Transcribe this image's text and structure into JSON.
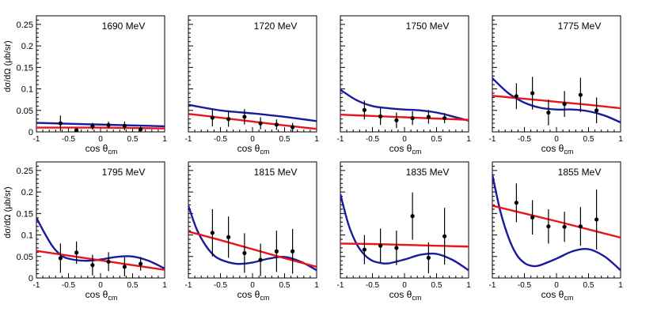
{
  "figure": {
    "ylabel": "dσ/dΩ (μb/sr)",
    "xlabel_main": "cos θ",
    "xlabel_sub": "cm",
    "colors": {
      "fit_blue": "#1a1a9e",
      "fit_red": "#e8141a",
      "points": "#000000"
    }
  },
  "chart_data": [
    {
      "type": "line",
      "title": "1690 MeV",
      "xlim": [
        -1,
        1
      ],
      "ylim": [
        0,
        0.27
      ],
      "xticks": [
        "-1",
        "-0.5",
        "0",
        "0.5",
        "1"
      ],
      "yticks": [
        "0",
        "0.05",
        "0.1",
        "0.15",
        "0.2",
        "0.25"
      ],
      "points": [
        {
          "x": -0.625,
          "y": 0.02,
          "err": 0.018
        },
        {
          "x": -0.375,
          "y": 0.004,
          "err": 0.004
        },
        {
          "x": -0.125,
          "y": 0.013,
          "err": 0.008
        },
        {
          "x": 0.125,
          "y": 0.016,
          "err": 0.008
        },
        {
          "x": 0.375,
          "y": 0.014,
          "err": 0.01
        },
        {
          "x": 0.625,
          "y": 0.006,
          "err": 0.006
        }
      ],
      "series": [
        {
          "name": "blue fit",
          "color": "#1a1a9e",
          "x": [
            -1,
            -0.5,
            0,
            0.5,
            1
          ],
          "y": [
            0.021,
            0.019,
            0.017,
            0.015,
            0.013
          ]
        },
        {
          "name": "red fit",
          "color": "#e8141a",
          "x": [
            -1,
            -0.5,
            0,
            0.5,
            1
          ],
          "y": [
            0.01,
            0.01,
            0.01,
            0.009,
            0.008
          ]
        }
      ]
    },
    {
      "type": "line",
      "title": "1720 MeV",
      "xlim": [
        -1,
        1
      ],
      "ylim": [
        0,
        0.27
      ],
      "xticks": [
        "-1",
        "-0.5",
        "0",
        "0.5",
        "1"
      ],
      "yticks": [],
      "points": [
        {
          "x": -0.625,
          "y": 0.033,
          "err": 0.02
        },
        {
          "x": -0.375,
          "y": 0.03,
          "err": 0.018
        },
        {
          "x": -0.125,
          "y": 0.035,
          "err": 0.018
        },
        {
          "x": 0.125,
          "y": 0.02,
          "err": 0.014
        },
        {
          "x": 0.375,
          "y": 0.017,
          "err": 0.012
        },
        {
          "x": 0.625,
          "y": 0.011,
          "err": 0.01
        }
      ],
      "series": [
        {
          "name": "blue fit",
          "color": "#1a1a9e",
          "x": [
            -1,
            -0.5,
            0,
            0.5,
            1
          ],
          "y": [
            0.063,
            0.05,
            0.043,
            0.035,
            0.025
          ]
        },
        {
          "name": "red fit",
          "color": "#e8141a",
          "x": [
            -1,
            -0.5,
            0,
            0.5,
            1
          ],
          "y": [
            0.042,
            0.033,
            0.024,
            0.015,
            0.007
          ]
        }
      ]
    },
    {
      "type": "line",
      "title": "1750 MeV",
      "xlim": [
        -1,
        1
      ],
      "ylim": [
        0,
        0.27
      ],
      "xticks": [
        "-1",
        "-0.5",
        "0",
        "0.5",
        "1"
      ],
      "yticks": [],
      "points": [
        {
          "x": -0.625,
          "y": 0.051,
          "err": 0.022
        },
        {
          "x": -0.375,
          "y": 0.036,
          "err": 0.02
        },
        {
          "x": -0.125,
          "y": 0.027,
          "err": 0.018
        },
        {
          "x": 0.125,
          "y": 0.032,
          "err": 0.016
        },
        {
          "x": 0.375,
          "y": 0.035,
          "err": 0.016
        },
        {
          "x": 0.625,
          "y": 0.032,
          "err": 0.012
        }
      ],
      "series": [
        {
          "name": "blue fit",
          "color": "#1a1a9e",
          "x": [
            -1,
            -0.75,
            -0.5,
            -0.25,
            0,
            0.25,
            0.5,
            0.75,
            1
          ],
          "y": [
            0.098,
            0.074,
            0.06,
            0.055,
            0.052,
            0.05,
            0.045,
            0.036,
            0.026
          ]
        },
        {
          "name": "red fit",
          "color": "#e8141a",
          "x": [
            -1,
            -0.5,
            0,
            0.5,
            1
          ],
          "y": [
            0.04,
            0.037,
            0.034,
            0.031,
            0.028
          ]
        }
      ]
    },
    {
      "type": "line",
      "title": "1775 MeV",
      "xlim": [
        -1,
        1
      ],
      "ylim": [
        0,
        0.27
      ],
      "xticks": [
        "-1",
        "-0.5",
        "0",
        "0.5",
        "1"
      ],
      "yticks": [],
      "points": [
        {
          "x": -0.625,
          "y": 0.083,
          "err": 0.03
        },
        {
          "x": -0.375,
          "y": 0.09,
          "err": 0.038
        },
        {
          "x": -0.125,
          "y": 0.045,
          "err": 0.03
        },
        {
          "x": 0.125,
          "y": 0.065,
          "err": 0.03
        },
        {
          "x": 0.375,
          "y": 0.086,
          "err": 0.04
        },
        {
          "x": 0.625,
          "y": 0.05,
          "err": 0.03
        }
      ],
      "series": [
        {
          "name": "blue fit",
          "color": "#1a1a9e",
          "x": [
            -1,
            -0.75,
            -0.5,
            -0.25,
            0,
            0.25,
            0.5,
            0.75,
            1
          ],
          "y": [
            0.125,
            0.09,
            0.068,
            0.056,
            0.052,
            0.052,
            0.048,
            0.038,
            0.022
          ]
        },
        {
          "name": "red fit",
          "color": "#e8141a",
          "x": [
            -1,
            -0.5,
            0,
            0.5,
            1
          ],
          "y": [
            0.084,
            0.077,
            0.07,
            0.063,
            0.055
          ]
        }
      ]
    },
    {
      "type": "line",
      "title": "1795 MeV",
      "xlim": [
        -1,
        1
      ],
      "ylim": [
        0,
        0.27
      ],
      "xticks": [
        "-1",
        "-0.5",
        "0",
        "0.5",
        "1"
      ],
      "yticks": [
        "0",
        "0.05",
        "0.1",
        "0.15",
        "0.2",
        "0.25"
      ],
      "points": [
        {
          "x": -0.625,
          "y": 0.046,
          "err": 0.034
        },
        {
          "x": -0.375,
          "y": 0.059,
          "err": 0.026
        },
        {
          "x": -0.125,
          "y": 0.03,
          "err": 0.024
        },
        {
          "x": 0.125,
          "y": 0.038,
          "err": 0.022
        },
        {
          "x": 0.375,
          "y": 0.026,
          "err": 0.022
        },
        {
          "x": 0.625,
          "y": 0.033,
          "err": 0.016
        }
      ],
      "series": [
        {
          "name": "blue fit",
          "color": "#1a1a9e",
          "x": [
            -1,
            -0.875,
            -0.75,
            -0.625,
            -0.5,
            -0.25,
            0,
            0.25,
            0.5,
            0.75,
            1
          ],
          "y": [
            0.14,
            0.105,
            0.074,
            0.054,
            0.045,
            0.04,
            0.043,
            0.049,
            0.05,
            0.04,
            0.022
          ]
        },
        {
          "name": "red fit",
          "color": "#e8141a",
          "x": [
            -1,
            -0.5,
            0,
            0.5,
            1
          ],
          "y": [
            0.063,
            0.052,
            0.041,
            0.03,
            0.019
          ]
        }
      ]
    },
    {
      "type": "line",
      "title": "1815 MeV",
      "xlim": [
        -1,
        1
      ],
      "ylim": [
        0,
        0.27
      ],
      "xticks": [
        "-1",
        "-0.5",
        "0",
        "0.5",
        "1"
      ],
      "yticks": [],
      "points": [
        {
          "x": -0.625,
          "y": 0.105,
          "err": 0.055
        },
        {
          "x": -0.375,
          "y": 0.095,
          "err": 0.048
        },
        {
          "x": -0.125,
          "y": 0.058,
          "err": 0.046
        },
        {
          "x": 0.125,
          "y": 0.042,
          "err": 0.038
        },
        {
          "x": 0.375,
          "y": 0.062,
          "err": 0.048
        },
        {
          "x": 0.625,
          "y": 0.062,
          "err": 0.052
        }
      ],
      "series": [
        {
          "name": "blue fit",
          "color": "#1a1a9e",
          "x": [
            -1,
            -0.875,
            -0.75,
            -0.625,
            -0.5,
            -0.25,
            0,
            0.25,
            0.5,
            0.75,
            1
          ],
          "y": [
            0.168,
            0.115,
            0.08,
            0.056,
            0.043,
            0.033,
            0.036,
            0.045,
            0.049,
            0.038,
            0.018
          ]
        },
        {
          "name": "red fit",
          "color": "#e8141a",
          "x": [
            -1,
            -0.5,
            0,
            0.5,
            1
          ],
          "y": [
            0.108,
            0.088,
            0.067,
            0.046,
            0.026
          ]
        }
      ]
    },
    {
      "type": "line",
      "title": "1835 MeV",
      "xlim": [
        -1,
        1
      ],
      "ylim": [
        0,
        0.27
      ],
      "xticks": [
        "-1",
        "-0.5",
        "0",
        "0.5",
        "1"
      ],
      "yticks": [],
      "points": [
        {
          "x": -0.625,
          "y": 0.066,
          "err": 0.034
        },
        {
          "x": -0.375,
          "y": 0.075,
          "err": 0.04
        },
        {
          "x": -0.125,
          "y": 0.07,
          "err": 0.04
        },
        {
          "x": 0.125,
          "y": 0.144,
          "err": 0.055
        },
        {
          "x": 0.375,
          "y": 0.047,
          "err": 0.036
        },
        {
          "x": 0.625,
          "y": 0.097,
          "err": 0.066
        }
      ],
      "series": [
        {
          "name": "blue fit",
          "color": "#1a1a9e",
          "x": [
            -1,
            -0.875,
            -0.75,
            -0.625,
            -0.5,
            -0.375,
            -0.25,
            0,
            0.25,
            0.5,
            0.75,
            1
          ],
          "y": [
            0.195,
            0.125,
            0.08,
            0.054,
            0.04,
            0.035,
            0.034,
            0.043,
            0.054,
            0.056,
            0.042,
            0.018
          ]
        },
        {
          "name": "red fit",
          "color": "#e8141a",
          "x": [
            -1,
            -0.5,
            0,
            0.5,
            1
          ],
          "y": [
            0.08,
            0.079,
            0.077,
            0.075,
            0.073
          ]
        }
      ]
    },
    {
      "type": "line",
      "title": "1855 MeV",
      "xlim": [
        -1,
        1
      ],
      "ylim": [
        0,
        0.27
      ],
      "xticks": [
        "-1",
        "-0.5",
        "0",
        "0.5",
        "1"
      ],
      "yticks": [],
      "points": [
        {
          "x": -0.625,
          "y": 0.175,
          "err": 0.045
        },
        {
          "x": -0.375,
          "y": 0.141,
          "err": 0.04
        },
        {
          "x": -0.125,
          "y": 0.12,
          "err": 0.04
        },
        {
          "x": 0.125,
          "y": 0.119,
          "err": 0.035
        },
        {
          "x": 0.375,
          "y": 0.12,
          "err": 0.045
        },
        {
          "x": 0.625,
          "y": 0.136,
          "err": 0.07
        }
      ],
      "series": [
        {
          "name": "blue fit",
          "color": "#1a1a9e",
          "x": [
            -1,
            -0.875,
            -0.75,
            -0.625,
            -0.5,
            -0.375,
            -0.25,
            0,
            0.25,
            0.5,
            0.75,
            1
          ],
          "y": [
            0.24,
            0.155,
            0.095,
            0.055,
            0.035,
            0.028,
            0.03,
            0.045,
            0.062,
            0.067,
            0.05,
            0.018
          ]
        },
        {
          "name": "red fit",
          "color": "#e8141a",
          "x": [
            -1,
            -0.5,
            0,
            0.5,
            1
          ],
          "y": [
            0.168,
            0.15,
            0.132,
            0.113,
            0.094
          ]
        }
      ]
    }
  ]
}
